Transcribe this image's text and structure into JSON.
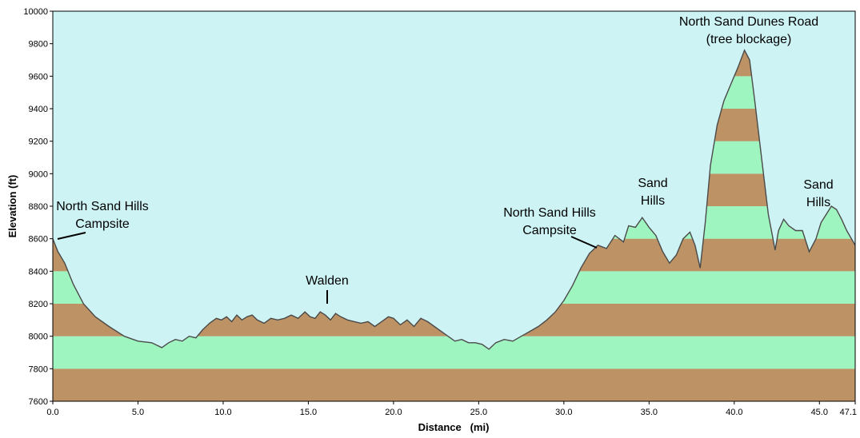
{
  "chart_data": {
    "type": "area",
    "title": "",
    "xlabel": "Distance   (mi)",
    "ylabel": "Elevation (ft)",
    "xlim": [
      0,
      47.1
    ],
    "ylim": [
      7600,
      10000
    ],
    "x_ticks": [
      0,
      5,
      10,
      15,
      20,
      25,
      30,
      35,
      40,
      45,
      47.1
    ],
    "x_tick_labels": [
      "0.0",
      "5.0",
      "10.0",
      "15.0",
      "20.0",
      "25.0",
      "30.0",
      "35.0",
      "40.0",
      "45.0",
      "47.1"
    ],
    "y_ticks": [
      7600,
      7800,
      8000,
      8200,
      8400,
      8600,
      8800,
      9000,
      9200,
      9400,
      9600,
      9800,
      10000
    ],
    "y_tick_labels": [
      "7600",
      "7800",
      "8000",
      "8200",
      "8400",
      "8600",
      "8800",
      "9000",
      "9200",
      "9400",
      "9600",
      "9800",
      "10000"
    ],
    "band_interval": 200,
    "colors": {
      "sky": "#cdf3f5",
      "band_brown": "#bd9264",
      "band_green": "#9ff5bf",
      "profile_line": "#4a4a4a"
    },
    "series": [
      {
        "x": [
          0,
          0.3,
          0.7,
          1.2,
          1.8,
          2.5,
          3.3,
          4.2,
          5.0,
          5.8,
          6.4,
          6.8,
          7.2,
          7.6,
          8.0,
          8.4,
          8.8,
          9.2,
          9.6,
          9.9,
          10.2,
          10.5,
          10.8,
          11.1,
          11.4,
          11.7,
          12.0,
          12.4,
          12.8,
          13.2,
          13.6,
          14.0,
          14.4,
          14.8,
          15.1,
          15.4,
          15.7,
          16.0,
          16.3,
          16.6,
          16.9,
          17.3,
          17.7,
          18.1,
          18.5,
          18.9,
          19.3,
          19.7,
          20.0,
          20.4,
          20.8,
          21.2,
          21.6,
          22.0,
          22.4,
          22.8,
          23.2,
          23.6,
          24.0,
          24.4,
          24.8,
          25.2,
          25.6,
          26.0,
          26.5,
          27.0,
          27.5,
          28.0,
          28.5,
          29.0,
          29.5,
          30.0,
          30.5,
          31.0,
          31.5,
          32.0,
          32.5,
          33.0,
          33.5,
          33.8,
          34.2,
          34.6,
          35.0,
          35.4,
          35.8,
          36.2,
          36.6,
          37.0,
          37.4,
          37.7,
          38.0,
          38.3,
          38.6,
          39.0,
          39.4,
          39.8,
          40.2,
          40.6,
          40.9,
          41.2,
          41.6,
          42.0,
          42.4,
          42.6,
          42.9,
          43.2,
          43.6,
          44.0,
          44.4,
          44.8,
          45.1,
          45.4,
          45.7,
          46.0,
          46.3,
          46.6,
          47.1
        ],
        "y": [
          8600,
          8520,
          8450,
          8320,
          8200,
          8120,
          8060,
          8000,
          7970,
          7960,
          7930,
          7960,
          7980,
          7970,
          8000,
          7990,
          8040,
          8080,
          8110,
          8100,
          8120,
          8090,
          8130,
          8100,
          8120,
          8130,
          8100,
          8080,
          8110,
          8100,
          8110,
          8130,
          8110,
          8150,
          8120,
          8110,
          8150,
          8130,
          8100,
          8140,
          8120,
          8100,
          8090,
          8080,
          8090,
          8060,
          8090,
          8120,
          8110,
          8070,
          8100,
          8060,
          8110,
          8090,
          8060,
          8030,
          8000,
          7970,
          7980,
          7960,
          7960,
          7950,
          7920,
          7960,
          7980,
          7970,
          8000,
          8030,
          8060,
          8100,
          8150,
          8220,
          8310,
          8420,
          8510,
          8560,
          8540,
          8620,
          8580,
          8680,
          8670,
          8730,
          8670,
          8620,
          8520,
          8450,
          8500,
          8600,
          8640,
          8560,
          8420,
          8700,
          9050,
          9300,
          9450,
          9550,
          9650,
          9760,
          9700,
          9450,
          9100,
          8750,
          8530,
          8650,
          8720,
          8680,
          8650,
          8650,
          8520,
          8600,
          8700,
          8750,
          8800,
          8780,
          8720,
          8650,
          8560
        ]
      }
    ],
    "annotations": [
      {
        "lines": [
          "North Sand Hills",
          "Campsite"
        ],
        "x": 0.3,
        "y": 8600
      },
      {
        "lines": [
          "Walden"
        ],
        "x": 16.0,
        "y": 8130
      },
      {
        "lines": [
          "North Sand Hills",
          "Campsite"
        ],
        "x": 32.0,
        "y": 8560
      },
      {
        "lines": [
          "Sand",
          "Hills"
        ],
        "x": 34.6,
        "y": 8730
      },
      {
        "lines": [
          "North Sand Dunes Road",
          "(tree blockage)"
        ],
        "x": 40.9,
        "y": 9760
      },
      {
        "lines": [
          "Sand",
          "Hills"
        ],
        "x": 45.7,
        "y": 8800
      }
    ]
  }
}
